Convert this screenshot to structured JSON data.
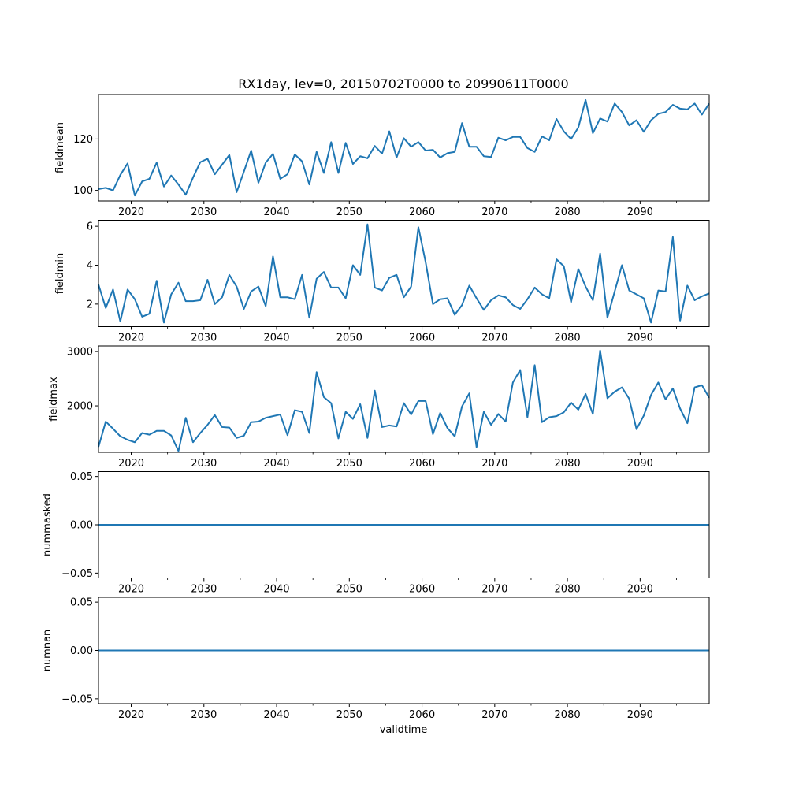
{
  "chart_data": {
    "type": "line",
    "title": "RX1day, lev=0, 20150702T0000 to 20990611T0000",
    "xlabel": "validtime",
    "xlim": [
      2015.5,
      2099.5
    ],
    "x_ticks": [
      2020,
      2030,
      2040,
      2050,
      2060,
      2070,
      2080,
      2090
    ],
    "x_tick_labels": [
      "2020",
      "2030",
      "2040",
      "2050",
      "2060",
      "2070",
      "2080",
      "2090"
    ],
    "color": "#1f77b4",
    "grid": false,
    "x": [
      2015.5,
      2016.5,
      2017.5,
      2018.5,
      2019.5,
      2020.5,
      2021.5,
      2022.5,
      2023.5,
      2024.5,
      2025.5,
      2026.5,
      2027.5,
      2028.5,
      2029.5,
      2030.5,
      2031.5,
      2032.5,
      2033.5,
      2034.5,
      2035.5,
      2036.5,
      2037.5,
      2038.5,
      2039.5,
      2040.5,
      2041.5,
      2042.5,
      2043.5,
      2044.5,
      2045.5,
      2046.5,
      2047.5,
      2048.5,
      2049.5,
      2050.5,
      2051.5,
      2052.5,
      2053.5,
      2054.5,
      2055.5,
      2056.5,
      2057.5,
      2058.5,
      2059.5,
      2060.5,
      2061.5,
      2062.5,
      2063.5,
      2064.5,
      2065.5,
      2066.5,
      2067.5,
      2068.5,
      2069.5,
      2070.5,
      2071.5,
      2072.5,
      2073.5,
      2074.5,
      2075.5,
      2076.5,
      2077.5,
      2078.5,
      2079.5,
      2080.5,
      2081.5,
      2082.5,
      2083.5,
      2084.5,
      2085.5,
      2086.5,
      2087.5,
      2088.5,
      2089.5,
      2090.5,
      2091.5,
      2092.5,
      2093.5,
      2094.5,
      2095.5,
      2096.5,
      2097.5,
      2098.5,
      2099.5
    ],
    "panels": [
      {
        "name": "fieldmean",
        "ylabel": "fieldmean",
        "ylim": [
          95.9,
          137.3
        ],
        "y_ticks": [
          100,
          120
        ],
        "y_tick_labels": [
          "100",
          "120"
        ],
        "values": [
          100.5,
          101,
          100,
          106,
          110.5,
          98,
          103.5,
          104.5,
          110.8,
          101.5,
          105.8,
          102.3,
          98.3,
          105,
          111,
          112.3,
          106.3,
          110,
          113.8,
          99.3,
          107.3,
          115.5,
          103,
          110.8,
          114.2,
          104.5,
          106.3,
          114,
          111.3,
          102.3,
          115,
          106.8,
          118.8,
          106.8,
          118.5,
          110.3,
          113.3,
          112.5,
          117.3,
          114.3,
          123,
          112.8,
          120.3,
          117,
          118.8,
          115.5,
          115.8,
          112.8,
          114.5,
          115,
          126.2,
          117,
          117,
          113.3,
          113,
          120.5,
          119.5,
          120.8,
          120.8,
          116.5,
          115,
          121,
          119.5,
          127.8,
          123,
          120,
          124.5,
          135.2,
          122.3,
          128,
          126.8,
          133.8,
          130.5,
          125.3,
          127.3,
          122.8,
          127.3,
          129.8,
          130.5,
          133.3,
          131.8,
          131.5,
          133.8,
          129.5,
          133.8
        ]
      },
      {
        "name": "fieldmin",
        "ylabel": "fieldmin",
        "ylim": [
          0.84,
          6.31
        ],
        "y_ticks": [
          2,
          4,
          6
        ],
        "y_tick_labels": [
          "2",
          "4",
          "6"
        ],
        "values": [
          3,
          1.8,
          2.75,
          1.1,
          2.75,
          2.25,
          1.35,
          1.5,
          3.2,
          1.05,
          2.5,
          3.1,
          2.15,
          2.15,
          2.2,
          3.25,
          2,
          2.35,
          3.5,
          2.9,
          1.75,
          2.65,
          2.9,
          1.9,
          4.45,
          2.35,
          2.35,
          2.25,
          3.5,
          1.3,
          3.3,
          3.65,
          2.85,
          2.85,
          2.3,
          4,
          3.5,
          6.1,
          2.85,
          2.7,
          3.35,
          3.5,
          2.35,
          2.9,
          5.95,
          4.15,
          2,
          2.25,
          2.3,
          1.45,
          1.95,
          2.95,
          2.3,
          1.7,
          2.2,
          2.45,
          2.35,
          1.95,
          1.75,
          2.25,
          2.85,
          2.5,
          2.3,
          4.3,
          3.95,
          2.1,
          3.8,
          2.9,
          2.2,
          4.6,
          1.3,
          2.65,
          4,
          2.7,
          2.5,
          2.3,
          1.05,
          2.7,
          2.65,
          5.45,
          1.15,
          2.95,
          2.2,
          2.4,
          2.55
        ]
      },
      {
        "name": "fieldmax",
        "ylabel": "fieldmax",
        "ylim": [
          1145,
          3103
        ],
        "y_ticks": [
          2000,
          3000
        ],
        "y_tick_labels": [
          "2000",
          "3000"
        ],
        "values": [
          1245,
          1710,
          1580,
          1440,
          1375,
          1330,
          1500,
          1470,
          1540,
          1540,
          1455,
          1170,
          1780,
          1330,
          1500,
          1650,
          1830,
          1610,
          1600,
          1410,
          1450,
          1700,
          1710,
          1780,
          1810,
          1840,
          1460,
          1920,
          1890,
          1500,
          2620,
          2160,
          2050,
          1400,
          1890,
          1760,
          2030,
          1410,
          2280,
          1610,
          1640,
          1620,
          2050,
          1840,
          2090,
          2090,
          1480,
          1870,
          1590,
          1440,
          1990,
          2230,
          1240,
          1890,
          1650,
          1850,
          1710,
          2430,
          2660,
          1790,
          2750,
          1700,
          1790,
          1810,
          1880,
          2060,
          1930,
          2220,
          1850,
          3020,
          2140,
          2260,
          2340,
          2130,
          1570,
          1820,
          2200,
          2430,
          2120,
          2320,
          1950,
          1680,
          2340,
          2380,
          2150
        ]
      },
      {
        "name": "nummasked",
        "ylabel": "nummasked",
        "ylim": [
          -0.055,
          0.055
        ],
        "y_ticks": [
          -0.05,
          0,
          0.05
        ],
        "y_tick_labels": [
          "−0.05",
          "0.00",
          "0.05"
        ],
        "values": [
          0,
          0
        ]
      },
      {
        "name": "numnan",
        "ylabel": "numnan",
        "ylim": [
          -0.055,
          0.055
        ],
        "y_ticks": [
          -0.05,
          0,
          0.05
        ],
        "y_tick_labels": [
          "−0.05",
          "0.00",
          "0.05"
        ],
        "values": [
          0,
          0
        ]
      }
    ]
  }
}
